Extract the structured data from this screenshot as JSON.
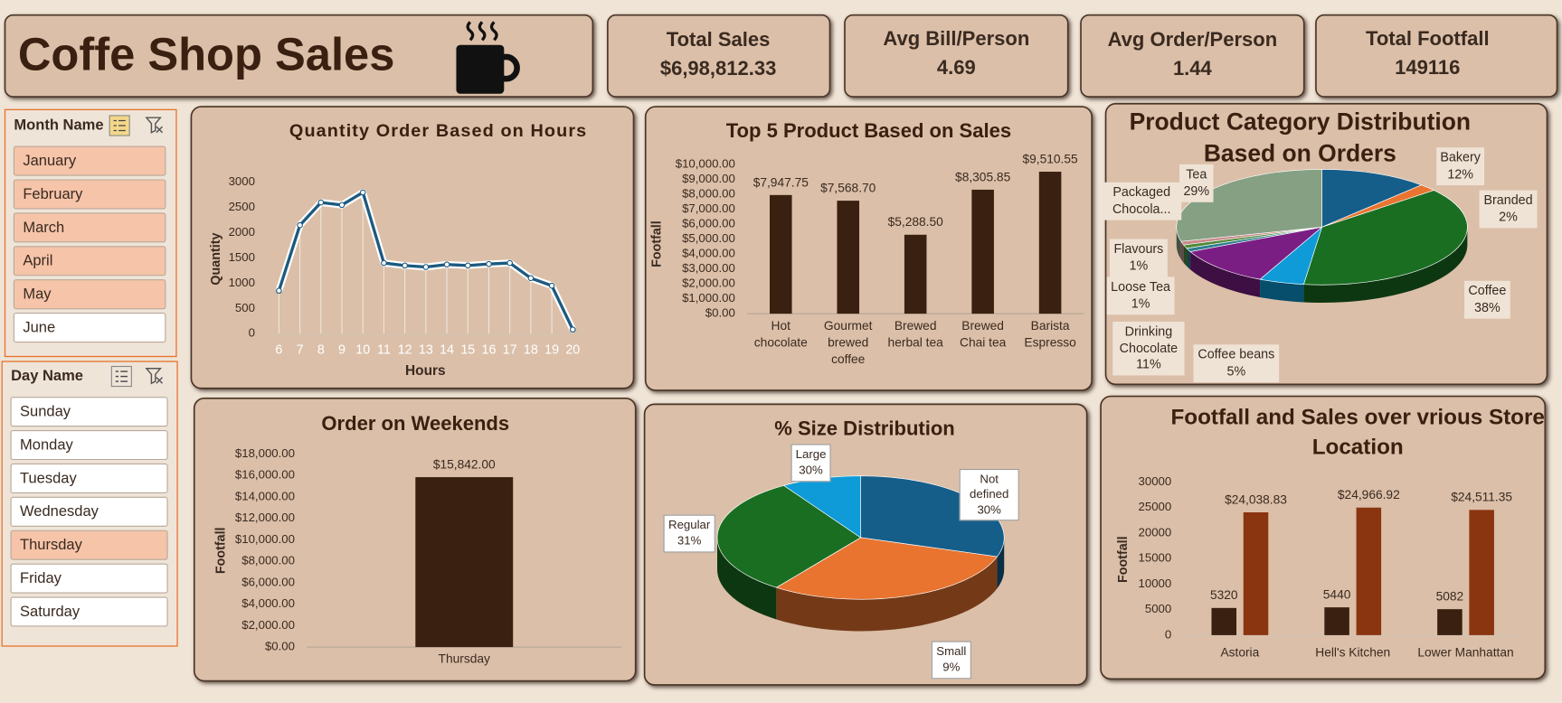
{
  "header": {
    "title": "Coffe Shop Sales"
  },
  "kpis": [
    {
      "label": "Total Sales",
      "value": "$6,98,812.33"
    },
    {
      "label": "Avg Bill/Person",
      "value": 4.69
    },
    {
      "label": "Avg Order/Person",
      "value": 1.44
    },
    {
      "label": "Total Footfall",
      "value": 149116
    }
  ],
  "slicers": [
    {
      "title": "Month Name",
      "items": [
        "January",
        "February",
        "March",
        "April",
        "May",
        "June"
      ],
      "selected": [
        true,
        true,
        true,
        true,
        true,
        false
      ]
    },
    {
      "title": "Day Name",
      "items": [
        "Sunday",
        "Monday",
        "Tuesday",
        "Wednesday",
        "Thursday",
        "Friday",
        "Saturday"
      ],
      "selected": [
        false,
        false,
        false,
        false,
        true,
        false,
        false
      ]
    }
  ],
  "chart_data": [
    {
      "type": "line",
      "title": "Quantity Order Based on Hours",
      "xlabel": "Hours",
      "ylabel": "Quantity",
      "categories": [
        "6",
        "7",
        "8",
        "9",
        "10",
        "11",
        "12",
        "13",
        "14",
        "15",
        "16",
        "17",
        "18",
        "19",
        "20"
      ],
      "values": [
        850,
        2150,
        2600,
        2550,
        2800,
        1400,
        1350,
        1320,
        1370,
        1350,
        1380,
        1400,
        1100,
        950,
        80
      ],
      "color": "#1c5a80",
      "ylim": [
        0,
        3000
      ],
      "yticks": [
        0,
        500,
        1000,
        1500,
        2000,
        2500,
        3000
      ]
    },
    {
      "type": "bar",
      "title": "Top 5 Product Based on Sales",
      "ylabel": "Footfall",
      "categories": [
        "Hot chocolate",
        "Gourmet brewed coffee",
        "Brewed herbal tea",
        "Brewed Chai tea",
        "Barista Espresso"
      ],
      "values": [
        7947.75,
        7568.7,
        5288.5,
        8305.85,
        9510.55
      ],
      "value_labels": [
        "$7,947.75",
        "$7,568.70",
        "$5,288.50",
        "$8,305.85",
        "$9,510.55"
      ],
      "color": "#3a2010",
      "ylim": [
        0,
        10000
      ],
      "yticks": [
        {
          "value": 0,
          "label": "$0.00"
        },
        {
          "value": 1000,
          "label": "$1,000.00"
        },
        {
          "value": 2000,
          "label": "$2,000.00"
        },
        {
          "value": 3000,
          "label": "$3,000.00"
        },
        {
          "value": 4000,
          "label": "$4,000.00"
        },
        {
          "value": 5000,
          "label": "$5,000.00"
        },
        {
          "value": 6000,
          "label": "$6,000.00"
        },
        {
          "value": 7000,
          "label": "$7,000.00"
        },
        {
          "value": 8000,
          "label": "$8,000.00"
        },
        {
          "value": 9000,
          "label": "$9,000.00"
        },
        {
          "value": 10000,
          "label": "$10,000.00"
        }
      ]
    },
    {
      "type": "pie",
      "title": "Product Category Distribution Based on Orders",
      "categories": [
        "Bakery",
        "Branded",
        "Coffee",
        "Coffee beans",
        "Drinking Chocolate",
        "Loose Tea",
        "Flavours",
        "Packaged Chocola...",
        "Tea"
      ],
      "values": [
        12,
        2,
        38,
        5,
        11,
        1,
        1,
        1,
        29
      ],
      "value_labels": [
        "12%",
        "2%",
        "38%",
        "5%",
        "11%",
        "1%",
        "1%",
        null,
        "29%"
      ],
      "colors": [
        "#165e8a",
        "#e87430",
        "#1a6e22",
        "#0e9bd8",
        "#7a1e84",
        "#2f7f8f",
        "#4f8a3a",
        "#c98a8a",
        "#86a084"
      ]
    },
    {
      "type": "bar",
      "title": "Order on Weekends",
      "ylabel": "Footfall",
      "categories": [
        "Thursday"
      ],
      "values": [
        15842
      ],
      "value_labels": [
        "$15,842.00"
      ],
      "color": "#3a2010",
      "ylim": [
        0,
        18000
      ],
      "yticks": [
        {
          "value": 0,
          "label": "$0.00"
        },
        {
          "value": 2000,
          "label": "$2,000.00"
        },
        {
          "value": 4000,
          "label": "$4,000.00"
        },
        {
          "value": 6000,
          "label": "$6,000.00"
        },
        {
          "value": 8000,
          "label": "$8,000.00"
        },
        {
          "value": 10000,
          "label": "$10,000.00"
        },
        {
          "value": 12000,
          "label": "$12,000.00"
        },
        {
          "value": 14000,
          "label": "$14,000.00"
        },
        {
          "value": 16000,
          "label": "$16,000.00"
        },
        {
          "value": 18000,
          "label": "$18,000.00"
        }
      ]
    },
    {
      "type": "pie",
      "title": "% Size Distribution",
      "categories": [
        "Large",
        "Not defined",
        "Regular",
        "Small"
      ],
      "values": [
        30,
        30,
        31,
        9
      ],
      "value_labels": [
        "30%",
        "30%",
        "31%",
        "9%"
      ],
      "colors": [
        "#165e8a",
        "#e87430",
        "#1a6e22",
        "#0e9bd8"
      ]
    },
    {
      "type": "grouped_bar",
      "title": "Footfall and Sales over vrious Store Location",
      "ylabel": "Footfall",
      "categories": [
        "Astoria",
        "Hell's Kitchen",
        "Lower Manhattan"
      ],
      "series": [
        {
          "color": "#3a2010",
          "values": [
            5320,
            5440,
            5082
          ]
        },
        {
          "color": "#8a3510",
          "values": [
            24038.83,
            24966.92,
            24511.35
          ],
          "value_labels": [
            "$24,038.83",
            "$24,966.92",
            "$24,511.35"
          ]
        }
      ],
      "ylim": [
        0,
        30000
      ],
      "yticks": [
        0,
        5000,
        10000,
        15000,
        20000,
        25000,
        30000
      ]
    }
  ]
}
